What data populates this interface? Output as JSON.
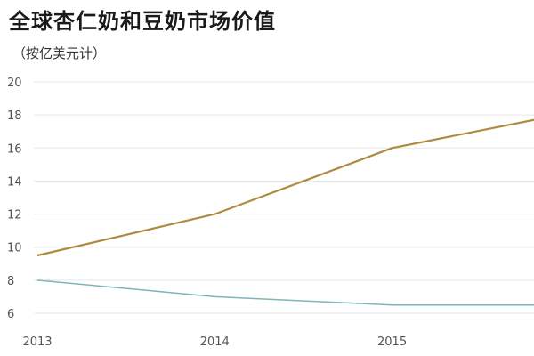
{
  "chart_data": {
    "type": "line",
    "title": "全球杏仁奶和豆奶市场价值",
    "subtitle": "（按亿美元计）",
    "x": [
      2013,
      2014,
      2015,
      2016
    ],
    "x_tick_labels": [
      "2013",
      "2014",
      "2015"
    ],
    "xlim": [
      2013,
      2015.8
    ],
    "ylim": [
      6,
      20
    ],
    "y_ticks": [
      6,
      8,
      10,
      12,
      14,
      16,
      18,
      20
    ],
    "grid": true,
    "legend": "none",
    "series": [
      {
        "color": "#b08a3e",
        "points": [
          [
            2013,
            9.5
          ],
          [
            2014,
            12
          ],
          [
            2015,
            16
          ],
          [
            2015.8,
            17.7
          ]
        ]
      },
      {
        "color": "#7fb5b5",
        "points": [
          [
            2013,
            8
          ],
          [
            2014,
            7
          ],
          [
            2015,
            6.5
          ],
          [
            2015.8,
            6.5
          ]
        ]
      }
    ]
  }
}
